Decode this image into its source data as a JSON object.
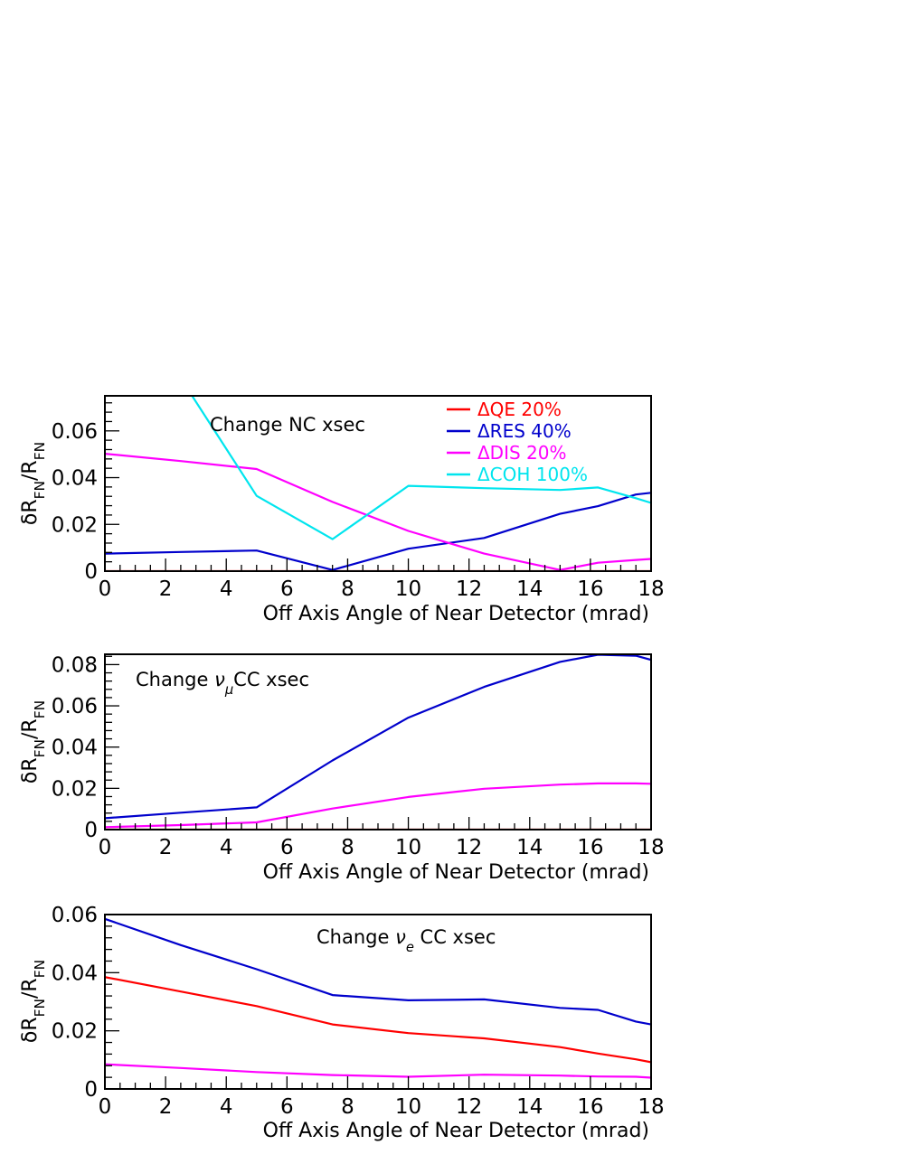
{
  "colors": {
    "qe": "#ff0000",
    "res": "#0000cc",
    "dis": "#ff00ff",
    "coh": "#00e5ee",
    "axis": "#000000"
  },
  "legend": [
    {
      "label": "ΔQE 20%",
      "color": "#ff0000"
    },
    {
      "label": "ΔRES 40%",
      "color": "#0000cc"
    },
    {
      "label": "ΔDIS 20%",
      "color": "#ff00ff"
    },
    {
      "label": "ΔCOH 100%",
      "color": "#00e5ee"
    }
  ],
  "chart_data": [
    {
      "type": "line",
      "annotation_parts": [
        {
          "text": "Change NC xsec"
        }
      ],
      "xlabel": "Off Axis Angle of Near Detector (mrad)",
      "ylabel_parts": [
        {
          "text": "δR"
        },
        {
          "text": "FN",
          "sub": true
        },
        {
          "text": "/R"
        },
        {
          "text": "FN",
          "sub": true
        }
      ],
      "xlim": [
        0,
        18
      ],
      "ylim": [
        0,
        0.075
      ],
      "xticks": [
        0,
        2,
        4,
        6,
        8,
        10,
        12,
        14,
        16,
        18
      ],
      "yticks": [
        0,
        0.02,
        0.04,
        0.06
      ],
      "ytick_labels": [
        "0",
        "0.02",
        "0.04",
        "0.06"
      ],
      "series": [
        {
          "name": "ΔQE 20%",
          "color": "#ff0000",
          "x": [
            0,
            2.5,
            5,
            7.5,
            10,
            12.5,
            15,
            16.25,
            17.5,
            18
          ],
          "y": [
            0,
            0,
            0,
            0,
            0,
            0,
            0,
            0,
            0,
            0
          ]
        },
        {
          "name": "ΔRES 40%",
          "color": "#0000cc",
          "x": [
            0,
            2.5,
            5,
            7.5,
            10,
            12.5,
            15,
            16.25,
            17.5,
            18
          ],
          "y": [
            0.0075,
            0.0082,
            0.0088,
            0.0005,
            0.0096,
            0.0142,
            0.0245,
            0.0278,
            0.0328,
            0.0335
          ]
        },
        {
          "name": "ΔDIS 20%",
          "color": "#ff00ff",
          "x": [
            0,
            2.5,
            5,
            7.5,
            10,
            12.5,
            15,
            16.25,
            17.5,
            18
          ],
          "y": [
            0.0502,
            0.0471,
            0.0437,
            0.0296,
            0.0172,
            0.0075,
            0.0005,
            0.0036,
            0.0048,
            0.0052
          ]
        },
        {
          "name": "ΔCOH 100%",
          "color": "#00e5ee",
          "x": [
            2.5,
            5,
            7.5,
            10,
            12.5,
            15,
            16.25,
            17.5,
            18
          ],
          "y": [
            0.0825,
            0.0322,
            0.0137,
            0.0365,
            0.0355,
            0.0347,
            0.0358,
            0.0312,
            0.0292
          ]
        }
      ]
    },
    {
      "type": "line",
      "annotation_parts": [
        {
          "text": "Change "
        },
        {
          "text": "ν",
          "italic": true
        },
        {
          "text": "μ",
          "sub": true,
          "italic": true
        },
        {
          "text": "CC xsec"
        }
      ],
      "xlabel": "Off Axis Angle of Near Detector (mrad)",
      "ylabel_parts": [
        {
          "text": "δR"
        },
        {
          "text": "FN",
          "sub": true
        },
        {
          "text": "/R"
        },
        {
          "text": "FN",
          "sub": true
        }
      ],
      "xlim": [
        0,
        18
      ],
      "ylim": [
        0,
        0.085
      ],
      "xticks": [
        0,
        2,
        4,
        6,
        8,
        10,
        12,
        14,
        16,
        18
      ],
      "yticks": [
        0,
        0.02,
        0.04,
        0.06,
        0.08
      ],
      "ytick_labels": [
        "0",
        "0.02",
        "0.04",
        "0.06",
        "0.08"
      ],
      "series": [
        {
          "name": "ΔQE 20%",
          "color": "#ff0000",
          "x": [
            0,
            2.5,
            5,
            7.5,
            10,
            12.5,
            15,
            16.25,
            17.5,
            18
          ],
          "y": [
            0,
            0,
            0,
            0,
            0,
            0,
            0,
            0,
            0,
            0
          ]
        },
        {
          "name": "ΔRES 40%",
          "color": "#0000cc",
          "x": [
            0,
            2.5,
            5,
            7.5,
            10,
            12.5,
            15,
            16.25,
            17.5,
            18
          ],
          "y": [
            0.0055,
            0.0082,
            0.0108,
            0.0335,
            0.0543,
            0.0692,
            0.0813,
            0.0848,
            0.0843,
            0.0823
          ]
        },
        {
          "name": "ΔDIS 20%",
          "color": "#ff00ff",
          "x": [
            0,
            2.5,
            5,
            7.5,
            10,
            12.5,
            15,
            16.25,
            17.5,
            18
          ],
          "y": [
            0.0012,
            0.0022,
            0.0035,
            0.0102,
            0.0158,
            0.0198,
            0.0218,
            0.0224,
            0.0224,
            0.0222
          ]
        }
      ]
    },
    {
      "type": "line",
      "annotation_parts": [
        {
          "text": "Change "
        },
        {
          "text": "ν",
          "italic": true
        },
        {
          "text": "e",
          "sub": true,
          "italic": true
        },
        {
          "text": " CC xsec"
        }
      ],
      "xlabel": "Off Axis Angle of Near Detector (mrad)",
      "ylabel_parts": [
        {
          "text": "δR"
        },
        {
          "text": "FN",
          "sub": true
        },
        {
          "text": "/R"
        },
        {
          "text": "FN",
          "sub": true
        }
      ],
      "xlim": [
        0,
        18
      ],
      "ylim": [
        0,
        0.06
      ],
      "xticks": [
        0,
        2,
        4,
        6,
        8,
        10,
        12,
        14,
        16,
        18
      ],
      "yticks": [
        0,
        0.02,
        0.04,
        0.06
      ],
      "ytick_labels": [
        "0",
        "0.02",
        "0.04",
        "0.06"
      ],
      "series": [
        {
          "name": "ΔQE 20%",
          "color": "#ff0000",
          "x": [
            0,
            2.5,
            5,
            7.5,
            10,
            12.5,
            15,
            16.25,
            17.5,
            18
          ],
          "y": [
            0.0385,
            0.0335,
            0.0285,
            0.0222,
            0.0192,
            0.0174,
            0.0144,
            0.0122,
            0.0102,
            0.0092
          ]
        },
        {
          "name": "ΔRES 40%",
          "color": "#0000cc",
          "x": [
            0,
            2.5,
            5,
            7.5,
            10,
            12.5,
            15,
            16.25,
            17.5,
            18
          ],
          "y": [
            0.0585,
            0.0495,
            0.0412,
            0.0323,
            0.0305,
            0.0308,
            0.0279,
            0.0272,
            0.0232,
            0.0222
          ]
        },
        {
          "name": "ΔDIS 20%",
          "color": "#ff00ff",
          "x": [
            0,
            2.5,
            5,
            7.5,
            10,
            12.5,
            15,
            16.25,
            17.5,
            18
          ],
          "y": [
            0.0085,
            0.0072,
            0.0058,
            0.0048,
            0.0042,
            0.0049,
            0.0046,
            0.0043,
            0.0042,
            0.0039
          ]
        }
      ]
    }
  ]
}
